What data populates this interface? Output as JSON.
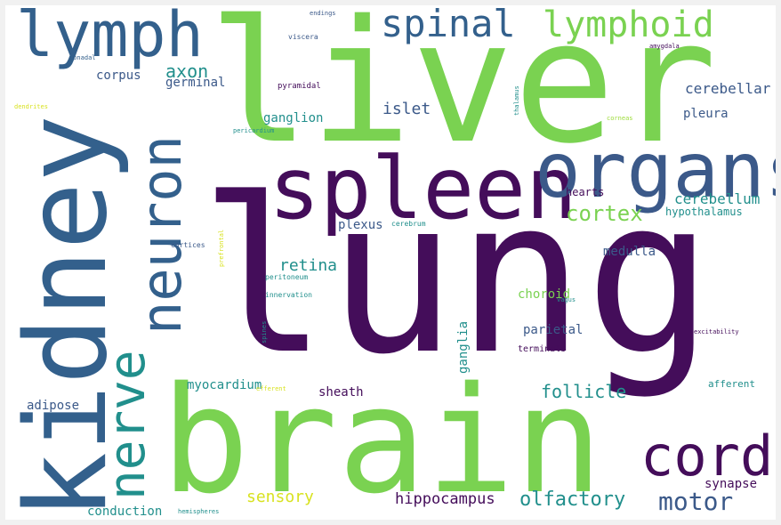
{
  "colors": {
    "dark_purple": "#440d5a",
    "blue": "#33608c",
    "steel": "#3b5989",
    "teal": "#218f8c",
    "green": "#7ad251",
    "light_green": "#9ddc3a",
    "yellow": "#d8e220"
  },
  "words": [
    {
      "text": "lung",
      "color": "#440d5a"
    },
    {
      "text": "liver",
      "color": "#7ad251"
    },
    {
      "text": "brain",
      "color": "#7ad251"
    },
    {
      "text": "kidney",
      "color": "#33608c"
    },
    {
      "text": "spleen",
      "color": "#440d5a"
    },
    {
      "text": "organs",
      "color": "#3b5989"
    },
    {
      "text": "lymph",
      "color": "#33608c"
    },
    {
      "text": "neuron",
      "color": "#33608c"
    },
    {
      "text": "nerve",
      "color": "#218f8c"
    },
    {
      "text": "cord",
      "color": "#440d5a"
    },
    {
      "text": "spinal",
      "color": "#33608c"
    },
    {
      "text": "lymphoid",
      "color": "#7ad251"
    },
    {
      "text": "cortex",
      "color": "#7ad251"
    },
    {
      "text": "motor",
      "color": "#3b5989"
    },
    {
      "text": "olfactory",
      "color": "#218f8c"
    },
    {
      "text": "follicle",
      "color": "#218f8c"
    },
    {
      "text": "axon",
      "color": "#218f8c"
    },
    {
      "text": "retina",
      "color": "#218f8c"
    },
    {
      "text": "cerebellar",
      "color": "#3b5989"
    },
    {
      "text": "cerebellum",
      "color": "#218f8c"
    },
    {
      "text": "islet",
      "color": "#3b5989"
    },
    {
      "text": "sensory",
      "color": "#d8e220"
    },
    {
      "text": "hippocampus",
      "color": "#440d5a"
    },
    {
      "text": "corpus",
      "color": "#3b5989"
    },
    {
      "text": "germinal",
      "color": "#3b5989"
    },
    {
      "text": "ganglion",
      "color": "#218f8c"
    },
    {
      "text": "pleura",
      "color": "#3b5989"
    },
    {
      "text": "plexus",
      "color": "#3b5989"
    },
    {
      "text": "medulla",
      "color": "#3b5989"
    },
    {
      "text": "choroid",
      "color": "#7ad251"
    },
    {
      "text": "parietal",
      "color": "#3b5989"
    },
    {
      "text": "myocardium",
      "color": "#218f8c"
    },
    {
      "text": "sheath",
      "color": "#440d5a"
    },
    {
      "text": "adipose",
      "color": "#3b5989"
    },
    {
      "text": "ganglia",
      "color": "#218f8c"
    },
    {
      "text": "synapse",
      "color": "#440d5a"
    },
    {
      "text": "conduction",
      "color": "#218f8c"
    },
    {
      "text": "hypothalamus",
      "color": "#218f8c"
    },
    {
      "text": "hearts",
      "color": "#440d5a"
    },
    {
      "text": "afferent",
      "color": "#218f8c"
    },
    {
      "text": "terminals",
      "color": "#440d5a"
    },
    {
      "text": "pyramidal",
      "color": "#440d5a"
    },
    {
      "text": "endings",
      "color": "#3b5989"
    },
    {
      "text": "viscera",
      "color": "#3b5989"
    },
    {
      "text": "amygdala",
      "color": "#440d5a"
    },
    {
      "text": "gonadal",
      "color": "#33608c"
    },
    {
      "text": "dendrites",
      "color": "#d8e220"
    },
    {
      "text": "thalamus",
      "color": "#218f8c"
    },
    {
      "text": "corneas",
      "color": "#9ddc3a"
    },
    {
      "text": "pericardium",
      "color": "#218f8c"
    },
    {
      "text": "cerebrum",
      "color": "#218f8c"
    },
    {
      "text": "cortices",
      "color": "#3b5989"
    },
    {
      "text": "prefrontal",
      "color": "#d8e220"
    },
    {
      "text": "peritoneum",
      "color": "#218f8c"
    },
    {
      "text": "innervation",
      "color": "#218f8c"
    },
    {
      "text": "vagus",
      "color": "#218f8c"
    },
    {
      "text": "spines",
      "color": "#218f8c"
    },
    {
      "text": "excitability",
      "color": "#440d5a"
    },
    {
      "text": "efferent",
      "color": "#d8e220"
    },
    {
      "text": "hemispheres",
      "color": "#218f8c"
    }
  ]
}
